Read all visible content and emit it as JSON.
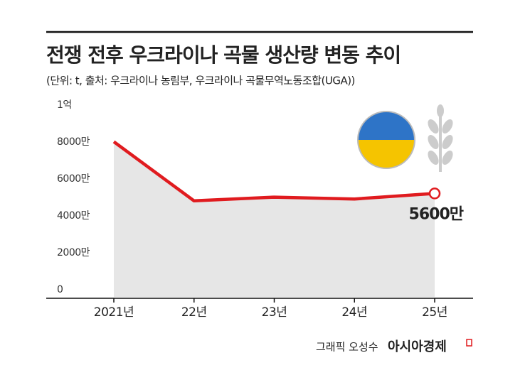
{
  "chart_data": {
    "type": "line",
    "title": "전쟁 전후 우크라이나 곡물 생산량 변동 추이",
    "subtitle": "(단위: t, 출처: 우크라이나 농림부, 우크라이나 곡물무역노동조합(UGA))",
    "categories": [
      "2021년",
      "22년",
      "23년",
      "24년",
      "25년"
    ],
    "values": [
      84000000,
      52000000,
      54000000,
      53000000,
      56000000
    ],
    "value_labels": [
      null,
      null,
      null,
      null,
      "5600만"
    ],
    "color": "#e01b1f",
    "area_color": "#e6e6e6",
    "ylim": [
      0,
      100000000
    ],
    "yticks": [
      0,
      {
        "value": 20000000,
        "label": "2000만"
      },
      {
        "value": 40000000,
        "label": "4000만"
      },
      {
        "value": 60000000,
        "label": "6000만"
      },
      {
        "value": 80000000,
        "label": "8000만"
      },
      {
        "value": 100000000,
        "label": "1억"
      }
    ],
    "grid": false,
    "credit": "그래픽 오성수",
    "publisher": "아시아경제"
  }
}
